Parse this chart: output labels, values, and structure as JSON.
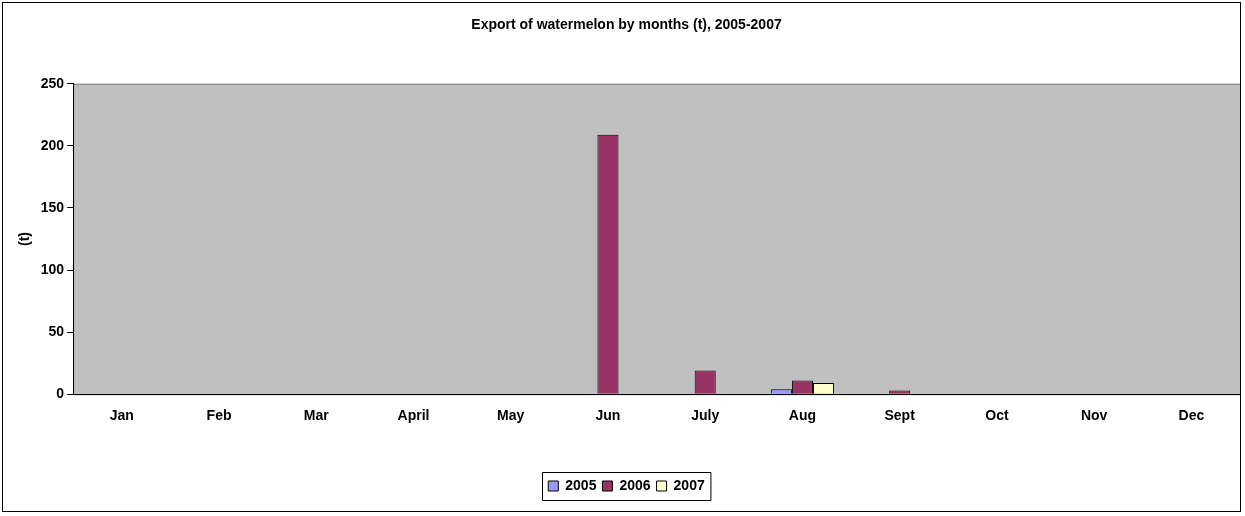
{
  "chart_data": {
    "type": "bar",
    "title": "Export of watermelon by months (t), 2005-2007",
    "ylabel": "(t)",
    "categories": [
      "Jan",
      "Feb",
      "Mar",
      "April",
      "May",
      "Jun",
      "July",
      "Aug",
      "Sept",
      "Oct",
      "Nov",
      "Dec"
    ],
    "series": [
      {
        "name": "2005",
        "color": "#9999ff",
        "values": [
          0,
          0,
          0,
          0,
          0,
          0,
          0,
          4,
          0,
          0,
          0,
          0
        ]
      },
      {
        "name": "2006",
        "color": "#993366",
        "values": [
          0,
          0,
          0,
          0,
          0,
          209,
          19,
          11,
          3,
          0,
          0,
          0
        ]
      },
      {
        "name": "2007",
        "color": "#ffffcc",
        "values": [
          0,
          0,
          0,
          0,
          0,
          0,
          0,
          9,
          0,
          0,
          0,
          0
        ]
      }
    ],
    "ylim": [
      0,
      250
    ],
    "yticks": [
      0,
      50,
      100,
      150,
      200,
      250
    ],
    "grid": false,
    "legend": "bottom"
  }
}
